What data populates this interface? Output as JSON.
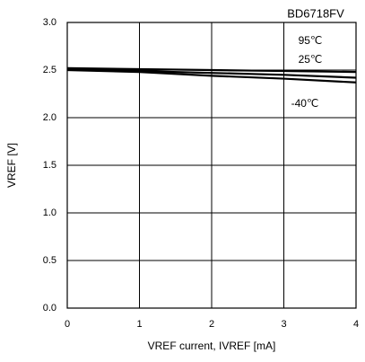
{
  "chart_data": {
    "type": "line",
    "title": "BD6718FV",
    "x_label": "VREF current, IVREF [mA]",
    "y_label": "VREF [V]",
    "x": [
      0,
      1,
      2,
      3,
      4
    ],
    "series": [
      {
        "name": "95℃",
        "color": "#000000",
        "values": [
          2.52,
          2.51,
          2.5,
          2.49,
          2.48
        ]
      },
      {
        "name": "25℃",
        "color": "#000000",
        "values": [
          2.51,
          2.49,
          2.47,
          2.45,
          2.42
        ]
      },
      {
        "name": "-40℃",
        "color": "#000000",
        "values": [
          2.5,
          2.48,
          2.44,
          2.41,
          2.37
        ]
      }
    ],
    "xlim": [
      0,
      4
    ],
    "xticks": [
      0,
      1,
      2,
      3,
      4
    ],
    "ylim": [
      0,
      3
    ],
    "yticks": [
      {
        "value": 0,
        "label": "0.0"
      },
      {
        "value": 0.5,
        "label": "0.5"
      },
      {
        "value": 1,
        "label": "1.0"
      },
      {
        "value": 1.5,
        "label": "1.5"
      },
      {
        "value": 2,
        "label": "2.0"
      },
      {
        "value": 2.5,
        "label": "2.5"
      },
      {
        "value": 3,
        "label": "3.0"
      }
    ],
    "grid": true
  }
}
